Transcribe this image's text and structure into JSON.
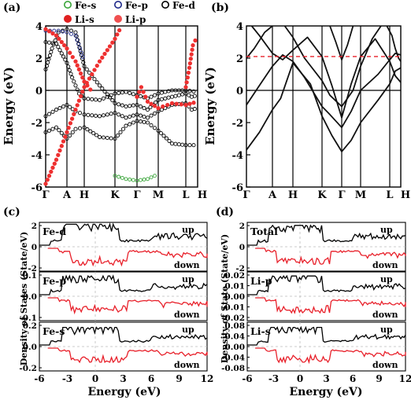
{
  "panels": {
    "a": {
      "label": "(a)",
      "ylabel": "Energy (eV)",
      "yticks": [
        "4",
        "2",
        "0",
        "-2",
        "-4",
        "-6"
      ],
      "kpoints": [
        "Γ",
        "A",
        "H",
        "K",
        "Γ",
        "M",
        "L",
        "H"
      ],
      "legend": [
        {
          "label": "Fe-s",
          "marker": "open-circle",
          "color": "#3aa53a"
        },
        {
          "label": "Fe-p",
          "marker": "open-circle",
          "color": "#1f2a8a"
        },
        {
          "label": "Fe-d",
          "marker": "open-circle",
          "color": "#000000"
        },
        {
          "label": "Li-s",
          "marker": "filled-circle",
          "color": "#e02020"
        },
        {
          "label": "Li-p",
          "marker": "filled-circle",
          "color": "#f05050"
        }
      ]
    },
    "b": {
      "label": "(b)",
      "ylabel": "Energy (eV)",
      "yticks": [
        "4",
        "2",
        "0",
        "-2",
        "-4",
        "-6"
      ],
      "kpoints": [
        "Γ",
        "A",
        "H",
        "K",
        "Γ",
        "M",
        "L",
        "H"
      ]
    },
    "c": {
      "label": "(c)",
      "ylabel": "Density of States (State/eV)",
      "xlabel": "Energy (eV)",
      "xticks": [
        "-6",
        "-3",
        "0",
        "3",
        "6",
        "9",
        "12"
      ],
      "subplots": [
        {
          "name": "Fe-d",
          "yticks": [
            "2",
            "0",
            "-2"
          ],
          "up": "up",
          "down": "down"
        },
        {
          "name": "Fe-p",
          "yticks": [
            "0.1",
            "0.0",
            "-0.1"
          ],
          "up": "up",
          "down": "down"
        },
        {
          "name": "Fe-s",
          "yticks": [
            "0.2",
            "0.0",
            "-0.2"
          ],
          "up": "up",
          "down": "down"
        }
      ]
    },
    "d": {
      "label": "(d)",
      "ylabel": "Density of State (State/eV)",
      "xlabel": "Energy (eV)",
      "xticks": [
        "-6",
        "-3",
        "0",
        "3",
        "6",
        "9",
        "12"
      ],
      "subplots": [
        {
          "name": "Total",
          "yticks": [
            "2",
            "0",
            "-2"
          ],
          "up": "up",
          "down": "down"
        },
        {
          "name": "Li-p",
          "yticks": [
            "0.02",
            "0.01",
            "0.00",
            "-0.01",
            "-0.02"
          ],
          "up": "up",
          "down": "down"
        },
        {
          "name": "Li-s",
          "yticks": [
            "0.08",
            "0.04",
            "0.00",
            "-0.04",
            "-0.08"
          ],
          "up": "up",
          "down": "down"
        }
      ]
    }
  },
  "colors": {
    "up": "#000000",
    "down": "#e8202a",
    "fermi": "#e8202a",
    "fe_s": "#3aa53a",
    "fe_p": "#1f2a8a",
    "fe_d": "#000000",
    "li": "#ee3030"
  }
}
